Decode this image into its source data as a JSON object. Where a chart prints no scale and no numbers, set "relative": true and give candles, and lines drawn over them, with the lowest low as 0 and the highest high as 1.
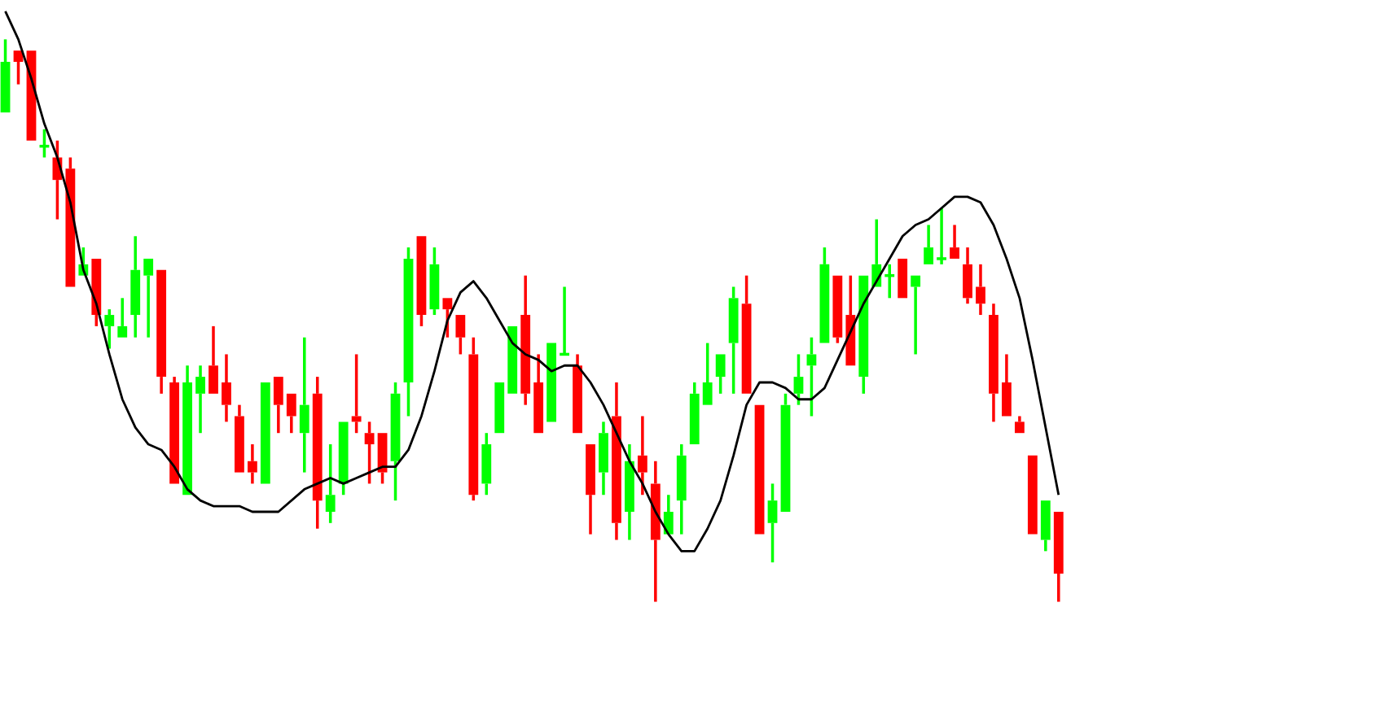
{
  "chart_data": {
    "type": "candlestick",
    "relative": true,
    "categories": [
      null,
      null,
      null,
      null,
      null,
      null,
      null,
      null,
      null,
      null,
      null,
      null,
      null,
      null,
      null,
      null,
      null,
      null,
      null,
      null,
      null,
      null,
      null,
      null,
      null,
      null,
      null,
      null,
      null,
      null,
      null,
      null,
      null,
      null,
      null,
      null,
      null,
      null,
      null,
      null,
      null,
      null,
      null,
      null,
      null,
      null,
      null,
      null,
      null,
      null,
      null,
      null,
      null,
      null,
      null,
      null,
      null,
      null,
      null,
      null,
      null,
      null,
      null,
      null,
      null,
      null,
      null,
      null,
      null,
      null,
      null,
      null,
      null,
      null,
      null,
      null,
      null,
      null,
      null,
      null,
      null,
      null
    ],
    "ohlc": [
      [
        0.87,
        1,
        0.87,
        0.96
      ],
      [
        0.98,
        0.98,
        0.92,
        0.96
      ],
      [
        0.98,
        0.98,
        0.82,
        0.82
      ],
      [
        0.81,
        0.84,
        0.79,
        0.81
      ],
      [
        0.79,
        0.82,
        0.68,
        0.75
      ],
      [
        0.77,
        0.79,
        0.56,
        0.56
      ],
      [
        0.58,
        0.63,
        0.58,
        0.6
      ],
      [
        0.61,
        0.61,
        0.49,
        0.51
      ],
      [
        0.49,
        0.52,
        0.45,
        0.51
      ],
      [
        0.47,
        0.54,
        0.47,
        0.49
      ],
      [
        0.51,
        0.65,
        0.47,
        0.59
      ],
      [
        0.58,
        0.61,
        0.47,
        0.61
      ],
      [
        0.59,
        0.59,
        0.37,
        0.4
      ],
      [
        0.39,
        0.4,
        0.21,
        0.21
      ],
      [
        0.19,
        0.42,
        0.19,
        0.39
      ],
      [
        0.37,
        0.42,
        0.3,
        0.4
      ],
      [
        0.42,
        0.49,
        0.37,
        0.37
      ],
      [
        0.39,
        0.44,
        0.32,
        0.35
      ],
      [
        0.33,
        0.35,
        0.23,
        0.23
      ],
      [
        0.25,
        0.28,
        0.21,
        0.23
      ],
      [
        0.21,
        0.39,
        0.21,
        0.39
      ],
      [
        0.4,
        0.4,
        0.3,
        0.35
      ],
      [
        0.37,
        0.37,
        0.3,
        0.33
      ],
      [
        0.3,
        0.47,
        0.23,
        0.35
      ],
      [
        0.37,
        0.4,
        0.13,
        0.18
      ],
      [
        0.16,
        0.28,
        0.14,
        0.19
      ],
      [
        0.21,
        0.32,
        0.19,
        0.32
      ],
      [
        0.33,
        0.44,
        0.3,
        0.32
      ],
      [
        0.3,
        0.32,
        0.21,
        0.28
      ],
      [
        0.3,
        0.3,
        0.21,
        0.23
      ],
      [
        0.25,
        0.39,
        0.18,
        0.37
      ],
      [
        0.39,
        0.63,
        0.33,
        0.61
      ],
      [
        0.65,
        0.65,
        0.49,
        0.51
      ],
      [
        0.52,
        0.63,
        0.51,
        0.6
      ],
      [
        0.54,
        0.54,
        0.47,
        0.52
      ],
      [
        0.51,
        0.51,
        0.44,
        0.47
      ],
      [
        0.44,
        0.47,
        0.18,
        0.19
      ],
      [
        0.21,
        0.3,
        0.19,
        0.28
      ],
      [
        0.3,
        0.39,
        0.3,
        0.39
      ],
      [
        0.37,
        0.49,
        0.37,
        0.49
      ],
      [
        0.51,
        0.58,
        0.35,
        0.37
      ],
      [
        0.39,
        0.44,
        0.3,
        0.3
      ],
      [
        0.32,
        0.46,
        0.32,
        0.46
      ],
      [
        0.44,
        0.56,
        0.44,
        0.44
      ],
      [
        0.42,
        0.44,
        0.3,
        0.3
      ],
      [
        0.28,
        0.28,
        0.12,
        0.19
      ],
      [
        0.23,
        0.32,
        0.19,
        0.3
      ],
      [
        0.33,
        0.39,
        0.11,
        0.14
      ],
      [
        0.16,
        0.28,
        0.11,
        0.25
      ],
      [
        0.26,
        0.33,
        0.19,
        0.23
      ],
      [
        0.21,
        0.25,
        0,
        0.11
      ],
      [
        0.12,
        0.19,
        0.12,
        0.16
      ],
      [
        0.18,
        0.28,
        0.12,
        0.26
      ],
      [
        0.28,
        0.39,
        0.28,
        0.37
      ],
      [
        0.35,
        0.46,
        0.35,
        0.39
      ],
      [
        0.4,
        0.44,
        0.37,
        0.44
      ],
      [
        0.46,
        0.56,
        0.37,
        0.54
      ],
      [
        0.53,
        0.58,
        0.37,
        0.37
      ],
      [
        0.35,
        0.35,
        0.12,
        0.12
      ],
      [
        0.14,
        0.21,
        0.07,
        0.18
      ],
      [
        0.16,
        0.37,
        0.16,
        0.35
      ],
      [
        0.37,
        0.44,
        0.35,
        0.4
      ],
      [
        0.42,
        0.47,
        0.33,
        0.44
      ],
      [
        0.46,
        0.63,
        0.46,
        0.6
      ],
      [
        0.58,
        0.58,
        0.46,
        0.47
      ],
      [
        0.51,
        0.58,
        0.42,
        0.42
      ],
      [
        0.4,
        0.58,
        0.37,
        0.58
      ],
      [
        0.56,
        0.68,
        0.56,
        0.6
      ],
      [
        0.58,
        0.6,
        0.54,
        0.58
      ],
      [
        0.61,
        0.61,
        0.54,
        0.54
      ],
      [
        0.56,
        0.58,
        0.44,
        0.58
      ],
      [
        0.6,
        0.67,
        0.6,
        0.63
      ],
      [
        0.61,
        0.7,
        0.6,
        0.61
      ],
      [
        0.63,
        0.67,
        0.61,
        0.61
      ],
      [
        0.6,
        0.63,
        0.53,
        0.54
      ],
      [
        0.56,
        0.6,
        0.51,
        0.53
      ],
      [
        0.51,
        0.53,
        0.32,
        0.37
      ],
      [
        0.39,
        0.44,
        0.33,
        0.33
      ],
      [
        0.32,
        0.33,
        0.3,
        0.3
      ],
      [
        0.26,
        0.26,
        0.12,
        0.12
      ],
      [
        0.11,
        0.18,
        0.09,
        0.18
      ],
      [
        0.16,
        0.16,
        0,
        0.05
      ]
    ],
    "series": [
      {
        "type": "line",
        "color": "#000000",
        "values": [
          1.05,
          1.0,
          0.93,
          0.85,
          0.79,
          0.71,
          0.59,
          0.53,
          0.44,
          0.36,
          0.31,
          0.28,
          0.27,
          0.24,
          0.2,
          0.18,
          0.17,
          0.17,
          0.17,
          0.16,
          0.16,
          0.16,
          0.18,
          0.2,
          0.21,
          0.22,
          0.21,
          0.22,
          0.23,
          0.24,
          0.24,
          0.27,
          0.33,
          0.41,
          0.5,
          0.55,
          0.57,
          0.54,
          0.5,
          0.46,
          0.44,
          0.43,
          0.41,
          0.42,
          0.42,
          0.39,
          0.35,
          0.3,
          0.25,
          0.21,
          0.16,
          0.12,
          0.09,
          0.09,
          0.13,
          0.18,
          0.26,
          0.35,
          0.39,
          0.39,
          0.38,
          0.36,
          0.36,
          0.38,
          0.43,
          0.48,
          0.53,
          0.57,
          0.61,
          0.65,
          0.67,
          0.68,
          0.7,
          0.72,
          0.72,
          0.71,
          0.67,
          0.61,
          0.54,
          0.43,
          0.31,
          0.19
        ]
      }
    ]
  }
}
